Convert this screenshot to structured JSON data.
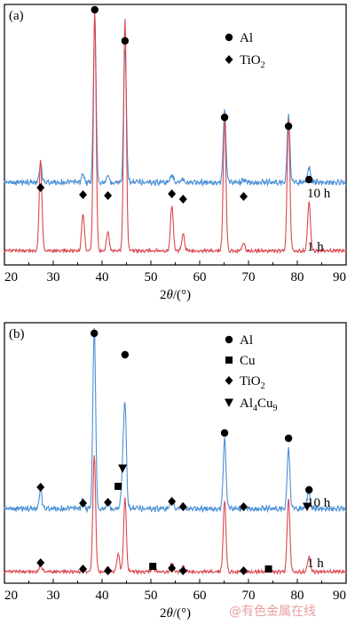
{
  "watermark": "@有色金属在线",
  "chart_data": [
    {
      "type": "line",
      "panel_label": "(a)",
      "xlabel": "2θ/(°)",
      "ylabel": "",
      "xlim": [
        20,
        90
      ],
      "xticks": [
        20,
        30,
        40,
        50,
        60,
        70,
        80,
        90
      ],
      "grid": false,
      "legend_placement": "top-right",
      "legend": [
        {
          "marker": "circle",
          "label": "Al"
        },
        {
          "marker": "diamond",
          "label": "TiO2"
        }
      ],
      "series": [
        {
          "name": "10 h",
          "color": "#4a90d6",
          "peaks": [
            [
              27.4,
              0.09
            ],
            [
              36.1,
              0.04
            ],
            [
              38.5,
              0.86
            ],
            [
              41.2,
              0.03
            ],
            [
              44.7,
              0.72
            ],
            [
              54.3,
              0.04
            ],
            [
              56.6,
              0.02
            ],
            [
              65.1,
              0.38
            ],
            [
              69.0,
              0.01
            ],
            [
              78.2,
              0.36
            ],
            [
              82.4,
              0.08
            ]
          ]
        },
        {
          "name": "1 h",
          "color": "#d9474f",
          "peaks": [
            [
              27.4,
              0.38
            ],
            [
              36.1,
              0.15
            ],
            [
              38.5,
              1.0
            ],
            [
              41.2,
              0.08
            ],
            [
              44.7,
              0.96
            ],
            [
              54.3,
              0.19
            ],
            [
              56.6,
              0.07
            ],
            [
              65.1,
              0.55
            ],
            [
              69.0,
              0.03
            ],
            [
              78.2,
              0.55
            ],
            [
              82.4,
              0.2
            ]
          ]
        }
      ],
      "annotations": [
        {
          "phase": "Al",
          "x": [
            38.5,
            44.7,
            65.1,
            78.2,
            82.4
          ]
        },
        {
          "phase": "TiO2",
          "x": [
            27.4,
            36.1,
            41.2,
            54.3,
            56.6,
            69.0
          ]
        }
      ]
    },
    {
      "type": "line",
      "panel_label": "(b)",
      "xlabel": "2θ/(°)",
      "ylabel": "",
      "xlim": [
        20,
        90
      ],
      "xticks": [
        20,
        30,
        40,
        50,
        60,
        70,
        80,
        90
      ],
      "grid": false,
      "legend_placement": "top-right",
      "legend": [
        {
          "marker": "circle",
          "label": "Al"
        },
        {
          "marker": "square",
          "label": "Cu"
        },
        {
          "marker": "diamond",
          "label": "TiO2"
        },
        {
          "marker": "triangle-down",
          "label": "Al4Cu9"
        }
      ],
      "series": [
        {
          "name": "10 h",
          "color": "#4a90d6",
          "peaks": [
            [
              27.4,
              0.1
            ],
            [
              36.1,
              0.05
            ],
            [
              38.4,
              1.0
            ],
            [
              41.2,
              0.04
            ],
            [
              44.2,
              0.18
            ],
            [
              44.7,
              0.55
            ],
            [
              54.3,
              0.06
            ],
            [
              56.6,
              0.03
            ],
            [
              65.1,
              0.38
            ],
            [
              69.0,
              0.01
            ],
            [
              78.2,
              0.33
            ],
            [
              82.2,
              0.04
            ],
            [
              82.4,
              0.06
            ]
          ]
        },
        {
          "name": "1 h",
          "color": "#d9474f",
          "peaks": [
            [
              27.4,
              0.04
            ],
            [
              36.1,
              0.03
            ],
            [
              38.4,
              0.66
            ],
            [
              41.2,
              0.03
            ],
            [
              43.3,
              0.1
            ],
            [
              44.7,
              0.41
            ],
            [
              50.4,
              0.02
            ],
            [
              54.3,
              0.05
            ],
            [
              56.6,
              0.03
            ],
            [
              65.1,
              0.4
            ],
            [
              69.0,
              0.01
            ],
            [
              74.1,
              0.01
            ],
            [
              78.2,
              0.41
            ],
            [
              82.4,
              0.08
            ]
          ]
        }
      ],
      "annotations": [
        {
          "phase": "Al",
          "x": [
            38.4,
            44.7,
            65.1,
            78.2,
            82.4
          ]
        },
        {
          "phase": "Cu",
          "x": [
            43.3,
            50.4,
            74.1
          ]
        },
        {
          "phase": "TiO2",
          "x": [
            27.4,
            36.1,
            41.2,
            54.3,
            56.6,
            69.0
          ]
        },
        {
          "phase": "Al4Cu9",
          "x": [
            44.2,
            82.0
          ]
        }
      ]
    }
  ]
}
